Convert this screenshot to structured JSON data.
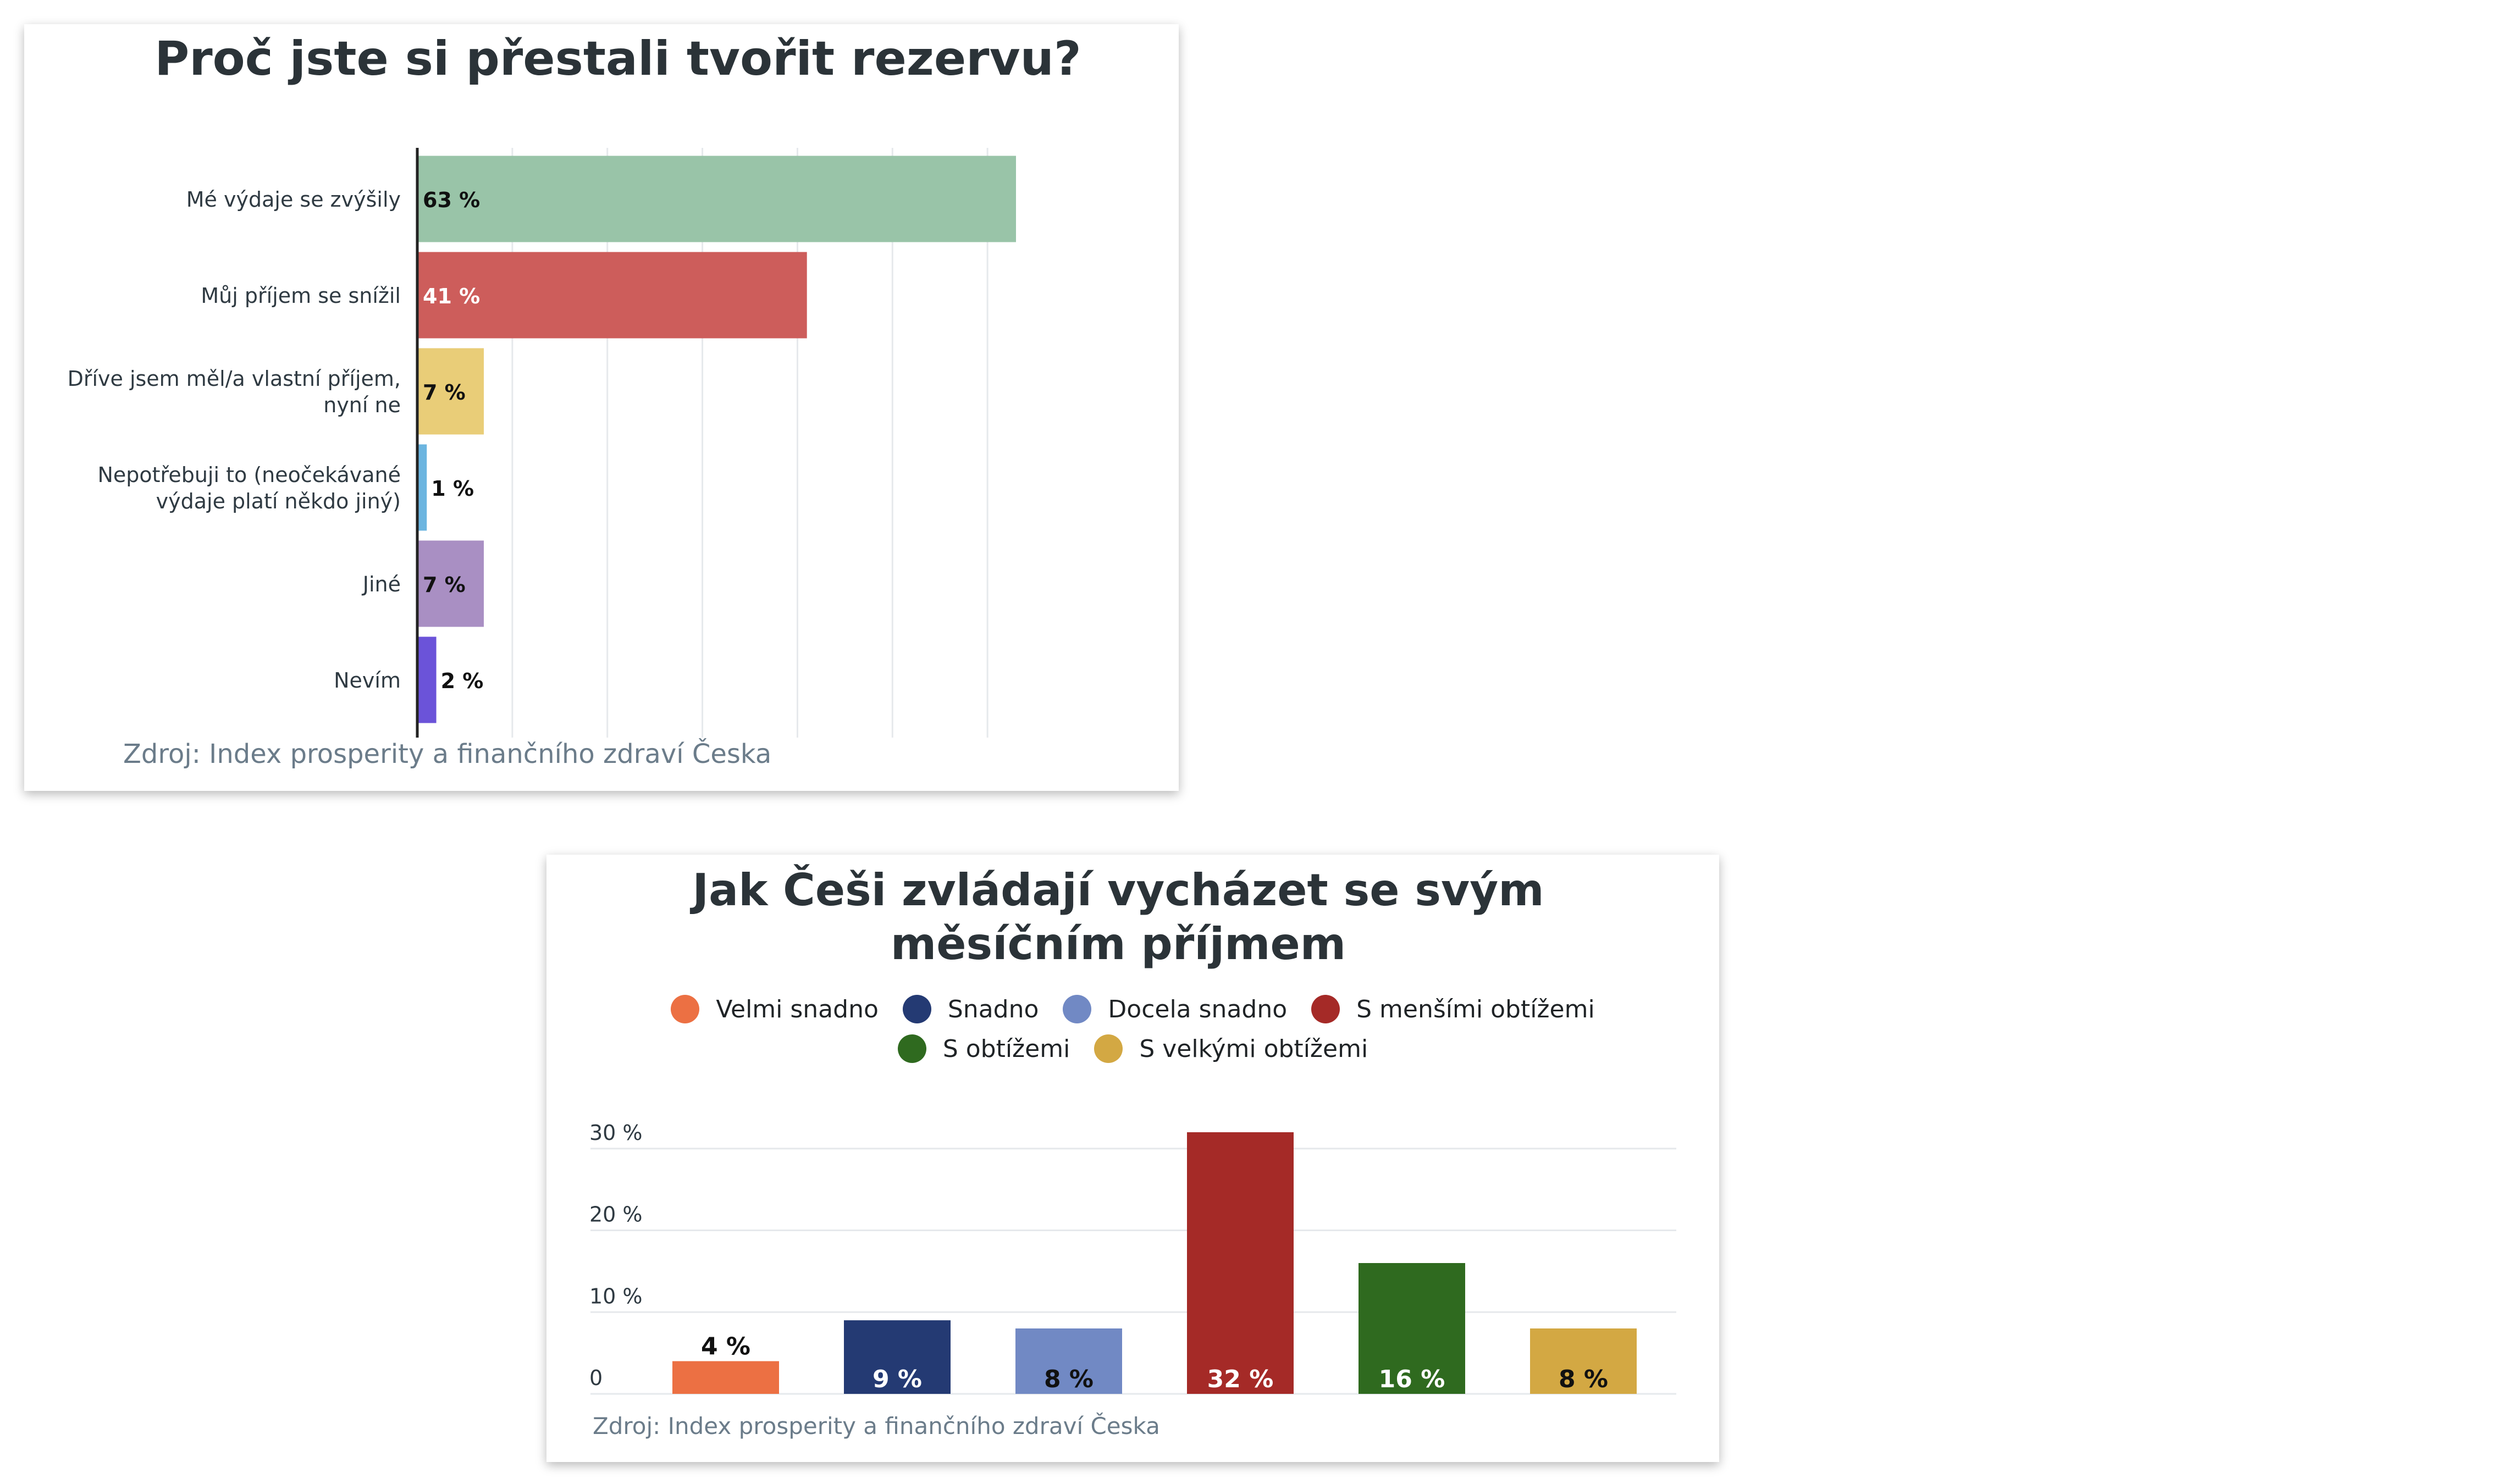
{
  "chart_data": [
    {
      "type": "bar",
      "orientation": "horizontal",
      "title": "Proč jste si přestali tvořit rezervu?",
      "categories": [
        "Mé výdaje se zvýšily",
        "Můj příjem se snížil",
        "Dříve jsem měl/a vlastní příjem, nyní ne",
        "Nepotřebuji to (neočekávané výdaje platí někdo jiný)",
        "Jiné",
        "Nevím"
      ],
      "category_lines": [
        [
          "Mé výdaje se zvýšily"
        ],
        [
          "Můj příjem se snížil"
        ],
        [
          "Dříve jsem měl/a vlastní příjem,",
          "nyní ne"
        ],
        [
          "Nepotřebuji to (neočekávané",
          "výdaje platí někdo jiný)"
        ],
        [
          "Jiné"
        ],
        [
          "Nevím"
        ]
      ],
      "values": [
        63,
        41,
        7,
        1,
        7,
        2
      ],
      "value_labels": [
        "63 %",
        "41 %",
        "7 %",
        "1 %",
        "7 %",
        "2 %"
      ],
      "colors": [
        "#99c4a8",
        "#cd5d5b",
        "#e9cd78",
        "#6cb5e0",
        "#a98fc3",
        "#6b53d9"
      ],
      "label_colors": [
        "#111111",
        "#ffffff",
        "#111111",
        "#111111",
        "#111111",
        "#111111"
      ],
      "xlim": [
        0,
        70
      ],
      "grid": true,
      "source": "Zdroj: Index prosperity a finančního zdraví Česka"
    },
    {
      "type": "bar",
      "orientation": "vertical",
      "title": "Jak Češi zvládají vycházet se svým měsíčním příjmem",
      "title_lines": [
        "Jak Češi zvládají vycházet se svým",
        "měsíčním příjmem"
      ],
      "categories": [
        "Velmi snadno",
        "Snadno",
        "Docela snadno",
        "S menšími obtížemi",
        "S obtížemi",
        "S velkými obtížemi"
      ],
      "values": [
        4,
        9,
        8,
        32,
        16,
        8
      ],
      "value_labels": [
        "4 %",
        "9 %",
        "8 %",
        "32 %",
        "16 %",
        "8 %"
      ],
      "colors": [
        "#ec7043",
        "#243a73",
        "#7189c4",
        "#a52a27",
        "#2f6a1f",
        "#d3a843"
      ],
      "label_colors": [
        "#111111",
        "#ffffff",
        "#111111",
        "#ffffff",
        "#ffffff",
        "#111111"
      ],
      "y_ticks": [
        0,
        10,
        20,
        30
      ],
      "y_tick_labels": [
        "0",
        "10 %",
        "20 %",
        "30 %"
      ],
      "ylim": [
        0,
        32
      ],
      "legend": "top",
      "grid": true,
      "source": "Zdroj: Index prosperity a finančního zdraví Česka"
    }
  ]
}
